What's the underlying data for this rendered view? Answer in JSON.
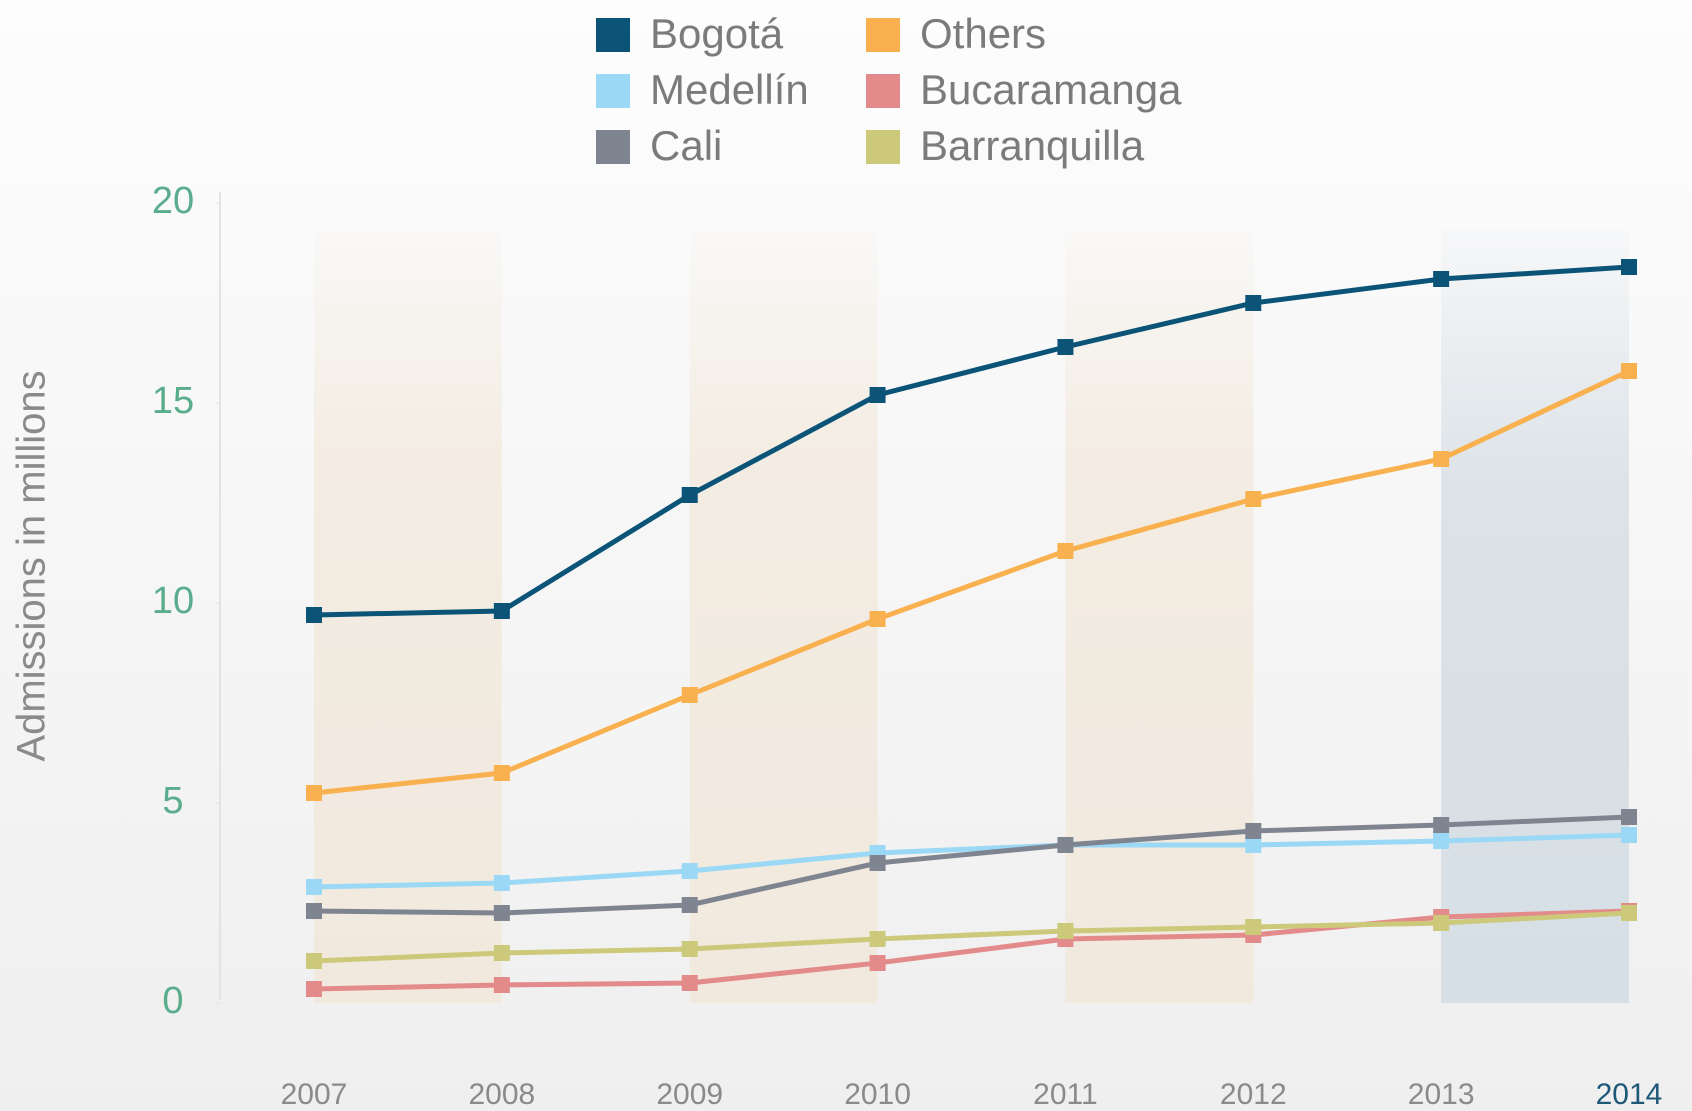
{
  "chart_data": {
    "type": "line",
    "y_label": "Admissions in millions",
    "categories": [
      "2007",
      "2008",
      "2009",
      "2010",
      "2011",
      "2012",
      "2013",
      "2014"
    ],
    "series": [
      {
        "name": "Bogotá",
        "color": "#0b5478",
        "values": [
          9.7,
          9.8,
          12.7,
          15.2,
          16.4,
          17.5,
          18.1,
          18.4
        ]
      },
      {
        "name": "Medellín",
        "color": "#9ad8f5",
        "values": [
          2.9,
          3.0,
          3.3,
          3.75,
          3.95,
          3.95,
          4.05,
          4.2
        ]
      },
      {
        "name": "Cali",
        "color": "#7f8590",
        "values": [
          2.3,
          2.25,
          2.45,
          3.5,
          3.95,
          4.3,
          4.45,
          4.65
        ]
      },
      {
        "name": "Others",
        "color": "#f9b150",
        "values": [
          5.25,
          5.75,
          7.7,
          9.6,
          11.3,
          12.6,
          13.6,
          15.8
        ]
      },
      {
        "name": "Bucaramanga",
        "color": "#e38a8a",
        "values": [
          0.35,
          0.45,
          0.5,
          1.0,
          1.6,
          1.7,
          2.15,
          2.3
        ]
      },
      {
        "name": "Barranquilla",
        "color": "#ccc97a",
        "values": [
          1.05,
          1.25,
          1.35,
          1.6,
          1.8,
          1.9,
          2.0,
          2.25
        ]
      }
    ],
    "ylim": [
      0,
      20
    ],
    "yticks": [
      0,
      5,
      10,
      15,
      20
    ]
  }
}
